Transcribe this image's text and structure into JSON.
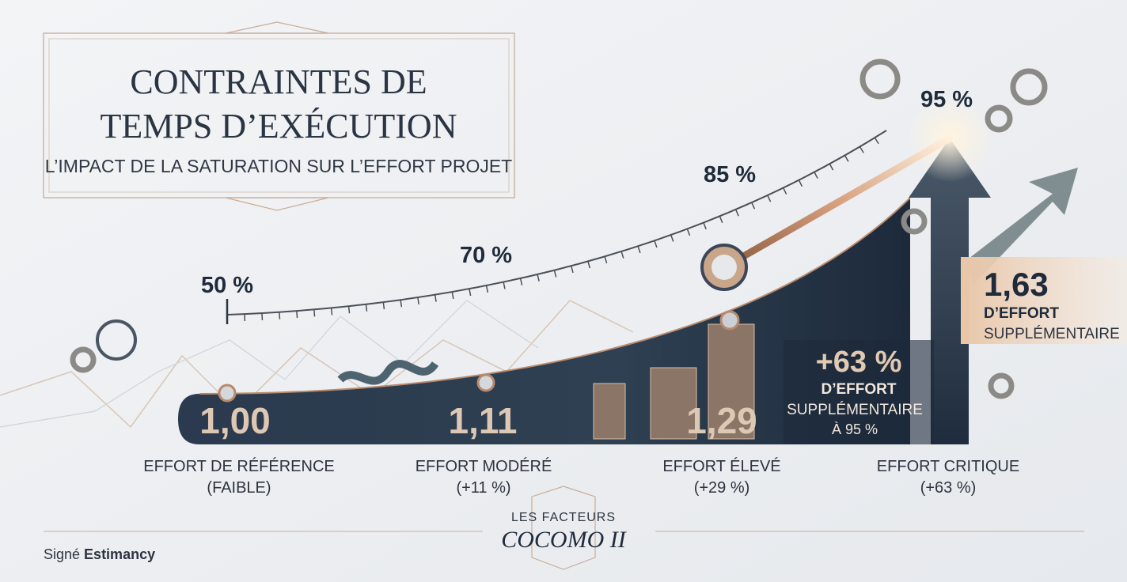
{
  "header": {
    "title_lines": [
      "CONTRAINTES DE",
      "TEMPS D’EXÉCUTION"
    ],
    "subtitle": "L’IMPACT DE LA SATURATION SUR L’EFFORT PROJET"
  },
  "gauge": {
    "ticks": [
      "50 %",
      "70 %",
      "85 %",
      "95 %"
    ]
  },
  "levels": [
    {
      "value": "1,00",
      "label_lines": [
        "EFFORT DE RÉFÉRENCE",
        "(FAIBLE)"
      ]
    },
    {
      "value": "1,11",
      "label_lines": [
        "EFFORT MODÉRÉ",
        "(+11 %)"
      ]
    },
    {
      "value": "1,29",
      "label_lines": [
        "EFFORT ÉLEVÉ",
        "(+29 %)"
      ]
    },
    {
      "label_lines": [
        "EFFORT CRITIQUE",
        "(+63 %)"
      ]
    }
  ],
  "callout": {
    "value": "+63 %",
    "lines": [
      "D’EFFORT",
      "SUPPLÉMENTAIRE",
      "À 95 %"
    ]
  },
  "result": {
    "value": "1,63",
    "lines": [
      "D’EFFORT",
      "SUPPLÉMENTAIRE"
    ]
  },
  "footer": {
    "signature_prefix": "Signé",
    "signature_brand": "Estimancy"
  },
  "logo": {
    "top": "LES FACTEURS",
    "name": "COCOMO II"
  }
}
